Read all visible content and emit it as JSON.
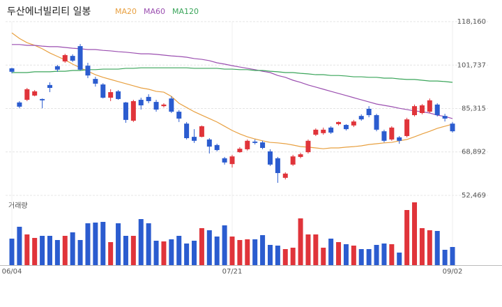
{
  "chart_data": {
    "type": "candlestick",
    "title": "두산에너빌리티 일봉",
    "volume_label": "거래량",
    "categories": [
      "06/04",
      null,
      null,
      null,
      null,
      null,
      null,
      null,
      null,
      null,
      null,
      null,
      null,
      null,
      null,
      null,
      null,
      null,
      null,
      null,
      null,
      null,
      null,
      null,
      null,
      null,
      null,
      null,
      null,
      "07/21",
      null,
      null,
      null,
      null,
      null,
      null,
      null,
      null,
      null,
      null,
      null,
      null,
      null,
      null,
      null,
      null,
      null,
      null,
      null,
      null,
      null,
      null,
      null,
      null,
      null,
      null,
      null,
      null,
      "09/02"
    ],
    "open": [
      100500,
      87600,
      88600,
      90200,
      88900,
      94200,
      101300,
      103100,
      105200,
      108900,
      101500,
      96500,
      94400,
      89400,
      91800,
      87600,
      80700,
      88600,
      89700,
      87800,
      86200,
      89100,
      84100,
      79600,
      74600,
      74600,
      73600,
      71500,
      66500,
      64300,
      68800,
      69900,
      72800,
      72500,
      69100,
      66500,
      59100,
      64100,
      67000,
      68800,
      75400,
      76000,
      78100,
      79400,
      79100,
      78900,
      82500,
      85200,
      82800,
      76700,
      73600,
      74400,
      74900,
      82800,
      83600,
      84100,
      86800,
      82500,
      79600
    ],
    "high": [
      100700,
      88100,
      93100,
      92300,
      89100,
      95200,
      101800,
      106000,
      105800,
      109700,
      102600,
      97300,
      94900,
      92600,
      92300,
      87800,
      88600,
      89400,
      90700,
      88600,
      87300,
      89900,
      84700,
      80200,
      77500,
      78900,
      74100,
      72000,
      67000,
      67800,
      70700,
      73600,
      73600,
      73100,
      69900,
      67000,
      61200,
      67800,
      68600,
      73600,
      77800,
      78100,
      78600,
      80400,
      79400,
      81000,
      83100,
      86200,
      83300,
      77300,
      78600,
      74900,
      81800,
      86800,
      87000,
      89100,
      87300,
      83300,
      80200
    ],
    "low": [
      98600,
      85400,
      88100,
      89900,
      85400,
      91500,
      99200,
      102600,
      102900,
      99700,
      96800,
      93600,
      89100,
      88100,
      88600,
      79900,
      80200,
      84900,
      87300,
      84100,
      85700,
      83600,
      80200,
      73600,
      72300,
      74400,
      68300,
      69100,
      64100,
      63000,
      68600,
      69400,
      71700,
      69900,
      63600,
      57200,
      58500,
      63600,
      66500,
      68300,
      74900,
      75400,
      75700,
      78900,
      77000,
      78300,
      80700,
      82000,
      76700,
      72500,
      73100,
      72000,
      74400,
      82300,
      83100,
      83600,
      82300,
      80400,
      76200
    ],
    "close": [
      99200,
      86000,
      92600,
      91800,
      88400,
      93100,
      100000,
      105500,
      103400,
      100000,
      97800,
      94700,
      89400,
      91500,
      88900,
      81000,
      88100,
      86500,
      88100,
      84900,
      86800,
      84100,
      81500,
      74100,
      73100,
      78600,
      70900,
      69600,
      64900,
      67200,
      70100,
      73100,
      72300,
      70400,
      64100,
      60900,
      60700,
      67200,
      68000,
      73100,
      77300,
      77300,
      76200,
      80200,
      77500,
      80400,
      81200,
      82800,
      77300,
      73100,
      78100,
      73100,
      81200,
      86200,
      86500,
      88400,
      82800,
      81500,
      76700
    ],
    "volume": [
      38,
      55,
      44,
      39,
      42,
      42,
      36,
      42,
      47,
      36,
      60,
      61,
      62,
      33,
      60,
      42,
      42,
      66,
      60,
      35,
      34,
      37,
      42,
      31,
      35,
      53,
      50,
      41,
      57,
      41,
      36,
      37,
      37,
      43,
      29,
      28,
      23,
      25,
      67,
      44,
      44,
      25,
      38,
      33,
      30,
      28,
      23,
      23,
      29,
      31,
      30,
      18,
      79,
      90,
      53,
      50,
      49,
      22,
      26
    ],
    "ma": [
      {
        "name": "MA20",
        "color": "#e8a040",
        "values": [
          113900,
          111800,
          110200,
          109200,
          107900,
          106300,
          105000,
          103700,
          102100,
          100700,
          99400,
          98100,
          97100,
          96300,
          95500,
          94700,
          93900,
          93100,
          92600,
          91800,
          91500,
          89900,
          87300,
          85700,
          84100,
          82800,
          81500,
          80200,
          78600,
          77000,
          75700,
          74600,
          73800,
          73100,
          72500,
          72300,
          72000,
          71500,
          70900,
          70700,
          70400,
          70100,
          70400,
          70400,
          70700,
          70900,
          71200,
          71700,
          72000,
          72300,
          72500,
          73100,
          73600,
          74600,
          75700,
          76700,
          77800,
          78600,
          79400
        ]
      },
      {
        "name": "MA60",
        "color": "#9b4fb0",
        "values": [
          109500,
          109500,
          109200,
          109200,
          108900,
          108700,
          108700,
          108400,
          108100,
          107900,
          107600,
          107600,
          107300,
          107100,
          106800,
          106600,
          106300,
          106000,
          106000,
          105800,
          105500,
          105200,
          105000,
          104700,
          104200,
          103900,
          103400,
          102600,
          102100,
          101500,
          101000,
          100500,
          100000,
          99400,
          98900,
          97800,
          97100,
          96000,
          95200,
          94200,
          93400,
          92600,
          91800,
          91000,
          90200,
          89400,
          88600,
          87800,
          87000,
          86500,
          86000,
          85400,
          84900,
          84400,
          84100,
          83600,
          82800,
          82300,
          81500
        ]
      },
      {
        "name": "MA120",
        "color": "#3aa55a",
        "values": [
          98900,
          98900,
          98900,
          99200,
          99200,
          99200,
          99400,
          99400,
          99700,
          99700,
          100000,
          100000,
          100200,
          100200,
          100200,
          100500,
          100500,
          100700,
          100700,
          100700,
          100700,
          100700,
          100700,
          100700,
          100500,
          100500,
          100500,
          100500,
          100200,
          100200,
          100000,
          100000,
          99700,
          99700,
          99400,
          99200,
          98900,
          98900,
          98600,
          98400,
          98100,
          98100,
          97800,
          97800,
          97600,
          97300,
          97300,
          97100,
          97100,
          96800,
          96800,
          96500,
          96300,
          96300,
          96000,
          95700,
          95700,
          95500,
          95200
        ]
      }
    ],
    "up_color": "#e0343a",
    "down_color": "#2b5ccf",
    "ylim": [
      52469,
      118160
    ],
    "yticks": [
      {
        "value": 52469,
        "label": "52,469"
      },
      {
        "value": 68892,
        "label": "68,892"
      },
      {
        "value": 85315,
        "label": "85,315"
      },
      {
        "value": 101737,
        "label": "101,737"
      },
      {
        "value": 118160,
        "label": "118,160"
      }
    ],
    "grid": true
  }
}
